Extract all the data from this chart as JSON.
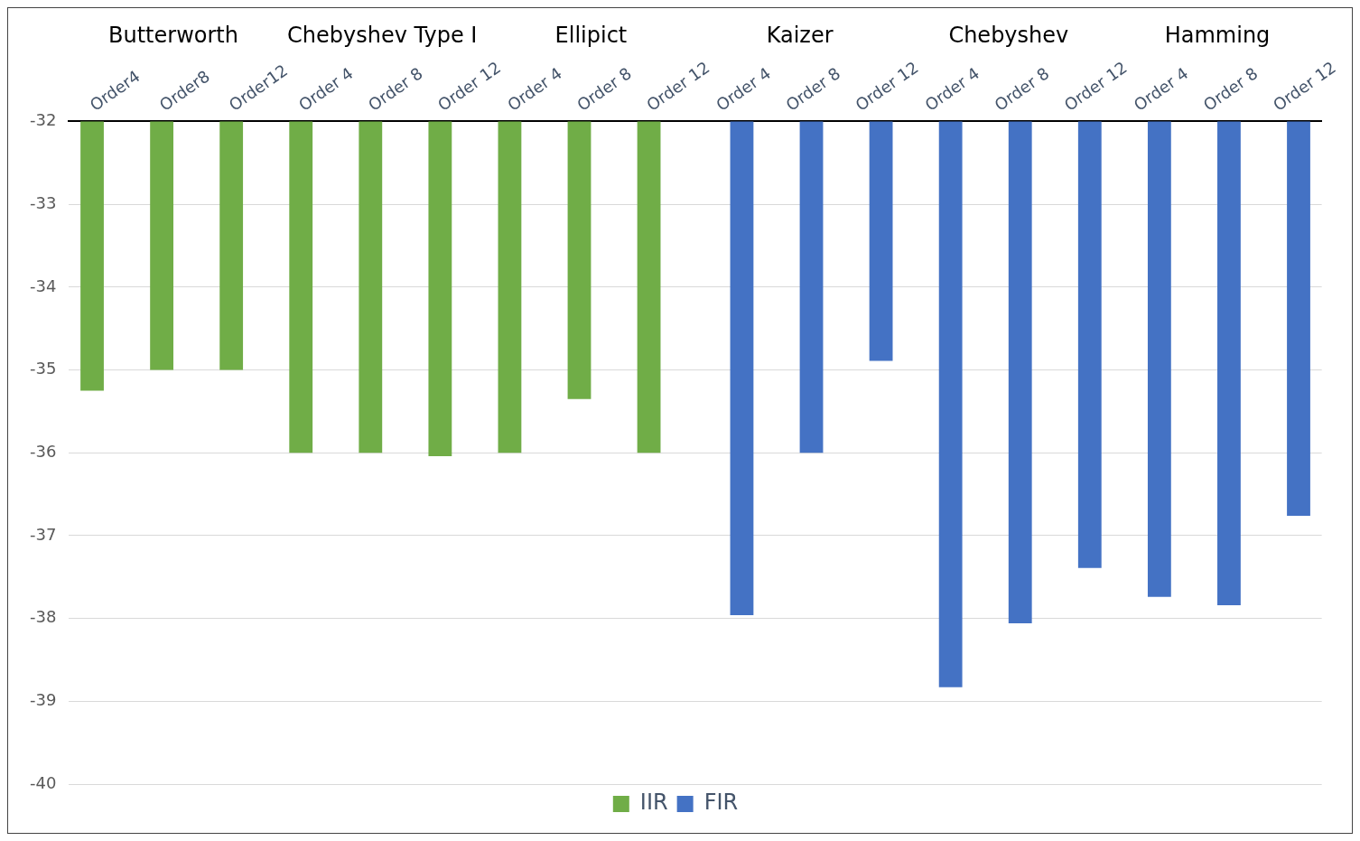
{
  "chart_data": {
    "type": "bar",
    "categories": [
      "Order4",
      "Order8",
      "Order12",
      "Order 4",
      "Order 8",
      "Order 12",
      "Order 4",
      "Order 8",
      "Order 12",
      "Order 4",
      "Order 8",
      "Order 12",
      "Order 4",
      "Order 8",
      "Order 12",
      "Order 4",
      "Order 8",
      "Order 12"
    ],
    "series": [
      {
        "name": "IIR",
        "color": "#70ad47",
        "values": [
          -35.25,
          -35.0,
          -35.0,
          -36.0,
          -36.0,
          -36.04,
          -36.0,
          -35.35,
          -36.0,
          null,
          null,
          null,
          null,
          null,
          null,
          null,
          null,
          null
        ]
      },
      {
        "name": "FIR",
        "color": "#4472c4",
        "values": [
          null,
          null,
          null,
          null,
          null,
          null,
          null,
          null,
          null,
          -37.96,
          -36.0,
          -34.89,
          -38.83,
          -38.06,
          -37.39,
          -37.74,
          -37.84,
          -36.76
        ]
      }
    ],
    "annotations": [
      "Butterworth",
      "Chebyshev Type I",
      "Ellipict",
      "Kaizer",
      "Chebyshev",
      "Hamming"
    ],
    "ylim": [
      -40,
      -32
    ],
    "yticks": [
      -40,
      -39,
      -38,
      -37,
      -36,
      -35,
      -34,
      -33,
      -32
    ],
    "grid": "y",
    "legend": "bottom"
  }
}
